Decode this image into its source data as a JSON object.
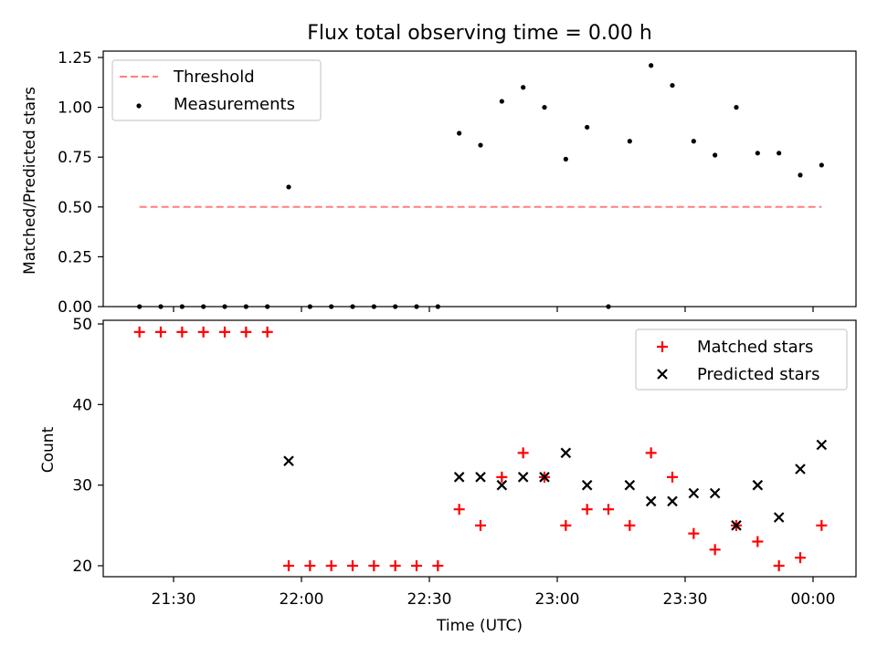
{
  "chart_data": [
    {
      "type": "scatter",
      "title": "Flux total observing time = 0.00 h",
      "xlabel": "",
      "ylabel": "Matched/Predicted stars",
      "ylim": [
        0,
        1.25
      ],
      "y_ticks": [
        "0.00",
        "0.25",
        "0.50",
        "0.75",
        "1.00",
        "1.25"
      ],
      "legend_position": "top-left",
      "threshold": {
        "name": "Threshold",
        "value": 0.5,
        "color": "#ff7f7f",
        "style": "dashed",
        "x_range": [
          "21:22",
          "00:02"
        ]
      },
      "series": [
        {
          "name": "Measurements",
          "color": "#000000",
          "marker": "dot",
          "points": [
            {
              "x": "21:22",
              "y": 0.0
            },
            {
              "x": "21:27",
              "y": 0.0
            },
            {
              "x": "21:32",
              "y": 0.0
            },
            {
              "x": "21:37",
              "y": 0.0
            },
            {
              "x": "21:42",
              "y": 0.0
            },
            {
              "x": "21:47",
              "y": 0.0
            },
            {
              "x": "21:52",
              "y": 0.0
            },
            {
              "x": "21:57",
              "y": 0.6
            },
            {
              "x": "22:02",
              "y": 0.0
            },
            {
              "x": "22:07",
              "y": 0.0
            },
            {
              "x": "22:12",
              "y": 0.0
            },
            {
              "x": "22:17",
              "y": 0.0
            },
            {
              "x": "22:22",
              "y": 0.0
            },
            {
              "x": "22:27",
              "y": 0.0
            },
            {
              "x": "22:32",
              "y": 0.0
            },
            {
              "x": "22:37",
              "y": 0.87
            },
            {
              "x": "22:42",
              "y": 0.81
            },
            {
              "x": "22:47",
              "y": 1.03
            },
            {
              "x": "22:52",
              "y": 1.1
            },
            {
              "x": "22:57",
              "y": 1.0
            },
            {
              "x": "23:02",
              "y": 0.74
            },
            {
              "x": "23:07",
              "y": 0.9
            },
            {
              "x": "23:12",
              "y": 0.0
            },
            {
              "x": "23:17",
              "y": 0.83
            },
            {
              "x": "23:22",
              "y": 1.21
            },
            {
              "x": "23:27",
              "y": 1.11
            },
            {
              "x": "23:32",
              "y": 0.83
            },
            {
              "x": "23:37",
              "y": 0.76
            },
            {
              "x": "23:42",
              "y": 1.0
            },
            {
              "x": "23:47",
              "y": 0.77
            },
            {
              "x": "23:52",
              "y": 0.77
            },
            {
              "x": "23:57",
              "y": 0.66
            },
            {
              "x": "00:02",
              "y": 0.71
            }
          ]
        }
      ]
    },
    {
      "type": "scatter",
      "title": "",
      "xlabel": "Time (UTC)",
      "ylabel": "Count",
      "ylim": [
        18.5,
        50.5
      ],
      "y_ticks": [
        "20",
        "30",
        "40",
        "50"
      ],
      "x_ticks": [
        "21:30",
        "22:00",
        "22:30",
        "23:00",
        "23:30",
        "00:00"
      ],
      "legend_position": "top-right",
      "series": [
        {
          "name": "Matched stars",
          "color": "#ff0000",
          "marker": "plus",
          "points": [
            {
              "x": "21:22",
              "y": 49
            },
            {
              "x": "21:27",
              "y": 49
            },
            {
              "x": "21:32",
              "y": 49
            },
            {
              "x": "21:37",
              "y": 49
            },
            {
              "x": "21:42",
              "y": 49
            },
            {
              "x": "21:47",
              "y": 49
            },
            {
              "x": "21:52",
              "y": 49
            },
            {
              "x": "21:57",
              "y": 20
            },
            {
              "x": "22:02",
              "y": 20
            },
            {
              "x": "22:07",
              "y": 20
            },
            {
              "x": "22:12",
              "y": 20
            },
            {
              "x": "22:17",
              "y": 20
            },
            {
              "x": "22:22",
              "y": 20
            },
            {
              "x": "22:27",
              "y": 20
            },
            {
              "x": "22:32",
              "y": 20
            },
            {
              "x": "22:37",
              "y": 27
            },
            {
              "x": "22:42",
              "y": 25
            },
            {
              "x": "22:47",
              "y": 31
            },
            {
              "x": "22:52",
              "y": 34
            },
            {
              "x": "22:57",
              "y": 31
            },
            {
              "x": "23:02",
              "y": 25
            },
            {
              "x": "23:07",
              "y": 27
            },
            {
              "x": "23:12",
              "y": 27
            },
            {
              "x": "23:17",
              "y": 25
            },
            {
              "x": "23:22",
              "y": 34
            },
            {
              "x": "23:27",
              "y": 31
            },
            {
              "x": "23:32",
              "y": 24
            },
            {
              "x": "23:37",
              "y": 22
            },
            {
              "x": "23:42",
              "y": 25
            },
            {
              "x": "23:47",
              "y": 23
            },
            {
              "x": "23:52",
              "y": 20
            },
            {
              "x": "23:57",
              "y": 21
            },
            {
              "x": "00:02",
              "y": 25
            }
          ]
        },
        {
          "name": "Predicted stars",
          "color": "#000000",
          "marker": "x",
          "points": [
            {
              "x": "21:57",
              "y": 33
            },
            {
              "x": "22:37",
              "y": 31
            },
            {
              "x": "22:42",
              "y": 31
            },
            {
              "x": "22:47",
              "y": 30
            },
            {
              "x": "22:52",
              "y": 31
            },
            {
              "x": "22:57",
              "y": 31
            },
            {
              "x": "23:02",
              "y": 34
            },
            {
              "x": "23:07",
              "y": 30
            },
            {
              "x": "23:17",
              "y": 30
            },
            {
              "x": "23:22",
              "y": 28
            },
            {
              "x": "23:27",
              "y": 28
            },
            {
              "x": "23:32",
              "y": 29
            },
            {
              "x": "23:37",
              "y": 29
            },
            {
              "x": "23:42",
              "y": 25
            },
            {
              "x": "23:47",
              "y": 30
            },
            {
              "x": "23:52",
              "y": 26
            },
            {
              "x": "23:57",
              "y": 32
            },
            {
              "x": "00:02",
              "y": 35
            }
          ]
        }
      ]
    }
  ]
}
